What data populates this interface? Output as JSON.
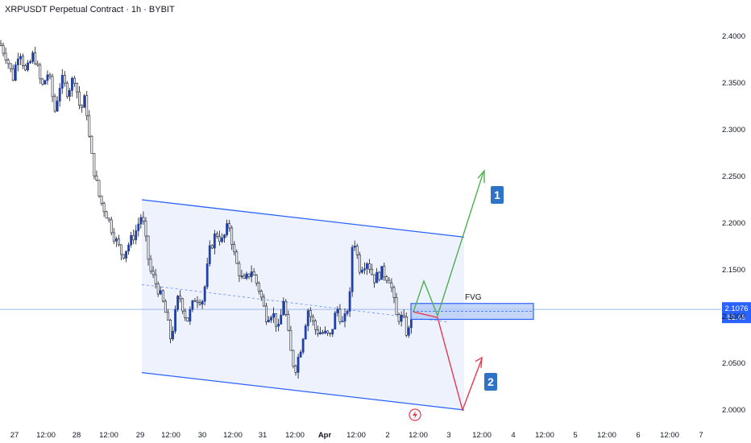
{
  "header": {
    "title": "XRPUSDT Perpetual Contract · 1h · BYBIT"
  },
  "colors": {
    "up": "#1f3fa8",
    "down": "#ffffff",
    "wick": "#131722",
    "channel": "#2962ff",
    "channel_fill": "#eef2fd",
    "fvg_fill": "#b3c8f5",
    "scenario_up": "#4caf50",
    "scenario_down": "#e53950",
    "price_line": "#9db7ee",
    "price_badge": "#2962ff",
    "badge_bg": "#2f73c8"
  },
  "price_badge": {
    "price": "2.1076",
    "countdown": "51:49"
  },
  "annotations": {
    "fvg": "FVG",
    "scenario_1": "1",
    "scenario_2": "2",
    "bottom_icon": "lightning-icon"
  },
  "chart_data": {
    "type": "candlestick",
    "symbol": "XRPUSDT Perpetual Contract",
    "interval": "1h",
    "exchange": "BYBIT",
    "ylim": [
      1.99,
      2.42
    ],
    "y_ticks": [
      "2.4000",
      "2.3500",
      "2.3000",
      "2.2500",
      "2.2000",
      "2.1500",
      "2.1000",
      "2.0500",
      "2.0000"
    ],
    "x_tick_labels": [
      "27",
      "12:00",
      "28",
      "12:00",
      "29",
      "12:00",
      "30",
      "12:00",
      "31",
      "12:00",
      "Apr",
      "12:00",
      "2",
      "12:00",
      "3",
      "12:00",
      "4",
      "12:00",
      "5",
      "12:00",
      "6",
      "12:00",
      "7"
    ],
    "last_price": 2.1076,
    "countdown": "51:49",
    "close_path": [
      [
        0,
        2.392
      ],
      [
        8,
        2.378
      ],
      [
        16,
        2.355
      ],
      [
        24,
        2.388
      ],
      [
        32,
        2.36
      ],
      [
        42,
        2.382
      ],
      [
        52,
        2.345
      ],
      [
        60,
        2.362
      ],
      [
        68,
        2.32
      ],
      [
        76,
        2.355
      ],
      [
        84,
        2.34
      ],
      [
        92,
        2.358
      ],
      [
        100,
        2.32
      ],
      [
        106,
        2.335
      ],
      [
        112,
        2.28
      ],
      [
        118,
        2.25
      ],
      [
        124,
        2.225
      ],
      [
        132,
        2.21
      ],
      [
        142,
        2.185
      ],
      [
        152,
        2.165
      ],
      [
        160,
        2.178
      ],
      [
        168,
        2.19
      ],
      [
        176,
        2.21
      ],
      [
        186,
        2.15
      ],
      [
        196,
        2.13
      ],
      [
        204,
        2.11
      ],
      [
        212,
        2.075
      ],
      [
        222,
        2.125
      ],
      [
        232,
        2.095
      ],
      [
        242,
        2.12
      ],
      [
        252,
        2.118
      ],
      [
        260,
        2.17
      ],
      [
        268,
        2.19
      ],
      [
        276,
        2.18
      ],
      [
        284,
        2.2
      ],
      [
        292,
        2.16
      ],
      [
        302,
        2.135
      ],
      [
        312,
        2.15
      ],
      [
        322,
        2.128
      ],
      [
        330,
        2.1
      ],
      [
        338,
        2.105
      ],
      [
        346,
        2.085
      ],
      [
        352,
        2.12
      ],
      [
        360,
        2.065
      ],
      [
        366,
        2.042
      ],
      [
        374,
        2.07
      ],
      [
        382,
        2.108
      ],
      [
        392,
        2.085
      ],
      [
        402,
        2.082
      ],
      [
        410,
        2.078
      ],
      [
        418,
        2.11
      ],
      [
        426,
        2.09
      ],
      [
        434,
        2.12
      ],
      [
        438,
        2.19
      ],
      [
        446,
        2.152
      ],
      [
        456,
        2.16
      ],
      [
        464,
        2.14
      ],
      [
        474,
        2.148
      ],
      [
        484,
        2.14
      ],
      [
        492,
        2.1
      ],
      [
        500,
        2.098
      ],
      [
        506,
        2.078
      ],
      [
        512,
        2.108
      ]
    ],
    "channel": {
      "upper": [
        [
          "29 00:00",
          2.225
        ],
        [
          "3 00:00",
          2.185
        ]
      ],
      "lower": [
        [
          "29 00:00",
          2.04
        ],
        [
          "3 00:00",
          2.0
        ]
      ]
    },
    "fvg_zone": {
      "top": 2.114,
      "bottom": 2.097
    },
    "scenario_1": [
      2.105,
      2.138,
      2.101,
      2.255
    ],
    "scenario_2": [
      2.105,
      2.099,
      2.0,
      2.055
    ]
  }
}
